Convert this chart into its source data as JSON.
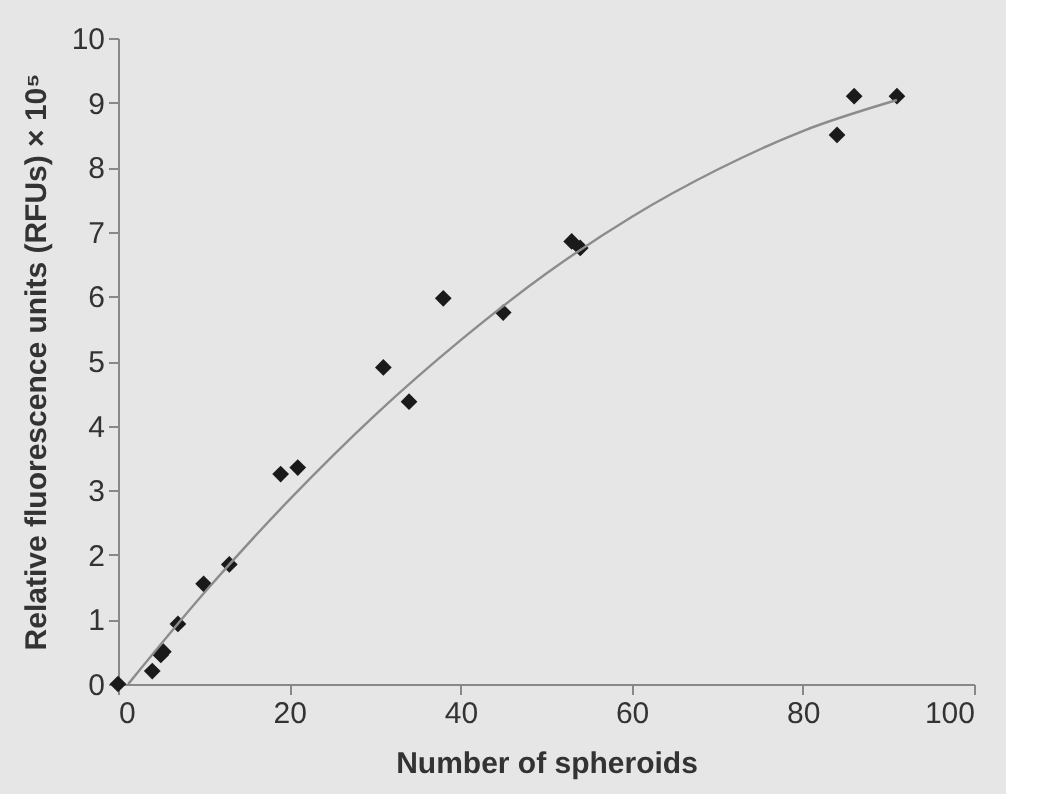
{
  "chart_data": {
    "type": "scatter",
    "xlabel": "Number of spheroids",
    "ylabel": "Relative fluorescence units (RFUs) × 10⁵",
    "xlim": [
      0,
      100
    ],
    "xticks": [
      0,
      20,
      40,
      60,
      80,
      100
    ],
    "ylim": [
      0,
      10
    ],
    "yticks": [
      0,
      1,
      2,
      3,
      4,
      5,
      6,
      7,
      8,
      9,
      10
    ],
    "grid": false,
    "series": [
      {
        "type": "scatter",
        "color": "#1a1a1a",
        "x": [
          0,
          4,
          5,
          5.3,
          7,
          10,
          13,
          19,
          21,
          31,
          34,
          38,
          45,
          53,
          54,
          84,
          86,
          91
        ],
        "values": [
          0,
          0.2,
          0.45,
          0.5,
          0.93,
          1.55,
          1.85,
          3.25,
          3.35,
          4.9,
          4.37,
          5.97,
          5.75,
          6.85,
          6.75,
          8.5,
          9.1,
          9.1
        ],
        "marker": "diamond"
      },
      {
        "type": "line",
        "marker": "none",
        "color": "#8c8c8c",
        "x": [
          1.2,
          10,
          20,
          30,
          40,
          50,
          60,
          70,
          80,
          91
        ],
        "values": [
          0,
          1.4,
          2.85,
          4.16,
          5.32,
          6.35,
          7.23,
          7.96,
          8.56,
          9.04
        ]
      }
    ]
  }
}
